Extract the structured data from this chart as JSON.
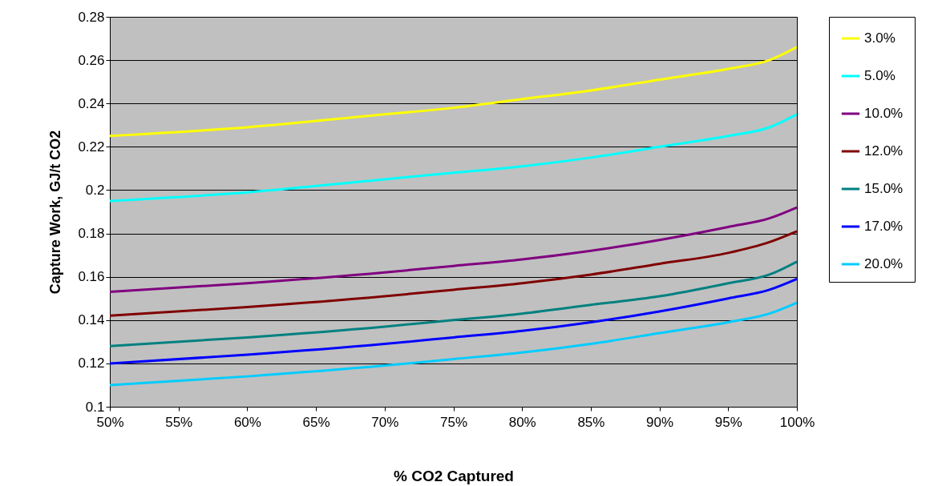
{
  "chart_data": {
    "type": "line",
    "xlabel": "% CO2 Captured",
    "ylabel": "Capture Work, GJ/t CO2",
    "x": [
      50,
      60,
      70,
      75,
      80,
      85,
      90,
      95,
      98,
      100
    ],
    "xlim": [
      50,
      100
    ],
    "xticks": [
      {
        "value": 50,
        "label": "50%"
      },
      {
        "value": 55,
        "label": "55%"
      },
      {
        "value": 60,
        "label": "60%"
      },
      {
        "value": 65,
        "label": "65%"
      },
      {
        "value": 70,
        "label": "70%"
      },
      {
        "value": 75,
        "label": "75%"
      },
      {
        "value": 80,
        "label": "80%"
      },
      {
        "value": 85,
        "label": "85%"
      },
      {
        "value": 90,
        "label": "90%"
      },
      {
        "value": 95,
        "label": "95%"
      },
      {
        "value": 100,
        "label": "100%"
      }
    ],
    "ylim": [
      0.1,
      0.28
    ],
    "yticks": [
      0.1,
      0.12,
      0.14,
      0.16,
      0.18,
      0.2,
      0.22,
      0.24,
      0.26,
      0.28
    ],
    "grid": "y",
    "legend": "right",
    "line_style": "solid",
    "series": [
      {
        "name": "3.0%",
        "color": "#ffff00",
        "values": [
          0.225,
          0.229,
          0.235,
          0.238,
          0.242,
          0.246,
          0.251,
          0.256,
          0.26,
          0.266
        ]
      },
      {
        "name": "5.0%",
        "color": "#00ffff",
        "values": [
          0.195,
          0.199,
          0.205,
          0.208,
          0.211,
          0.215,
          0.22,
          0.225,
          0.229,
          0.235
        ]
      },
      {
        "name": "10.0%",
        "color": "#800080",
        "values": [
          0.153,
          0.157,
          0.162,
          0.165,
          0.168,
          0.172,
          0.177,
          0.183,
          0.187,
          0.192
        ]
      },
      {
        "name": "12.0%",
        "color": "#800000",
        "values": [
          0.142,
          0.146,
          0.151,
          0.154,
          0.157,
          0.161,
          0.166,
          0.171,
          0.176,
          0.181
        ]
      },
      {
        "name": "15.0%",
        "color": "#008080",
        "values": [
          0.128,
          0.132,
          0.137,
          0.14,
          0.143,
          0.147,
          0.151,
          0.157,
          0.161,
          0.167
        ]
      },
      {
        "name": "17.0%",
        "color": "#0000ff",
        "values": [
          0.12,
          0.124,
          0.129,
          0.132,
          0.135,
          0.139,
          0.144,
          0.15,
          0.154,
          0.159
        ]
      },
      {
        "name": "20.0%",
        "color": "#00ccff",
        "values": [
          0.11,
          0.114,
          0.119,
          0.122,
          0.125,
          0.129,
          0.134,
          0.139,
          0.143,
          0.148
        ]
      }
    ]
  }
}
